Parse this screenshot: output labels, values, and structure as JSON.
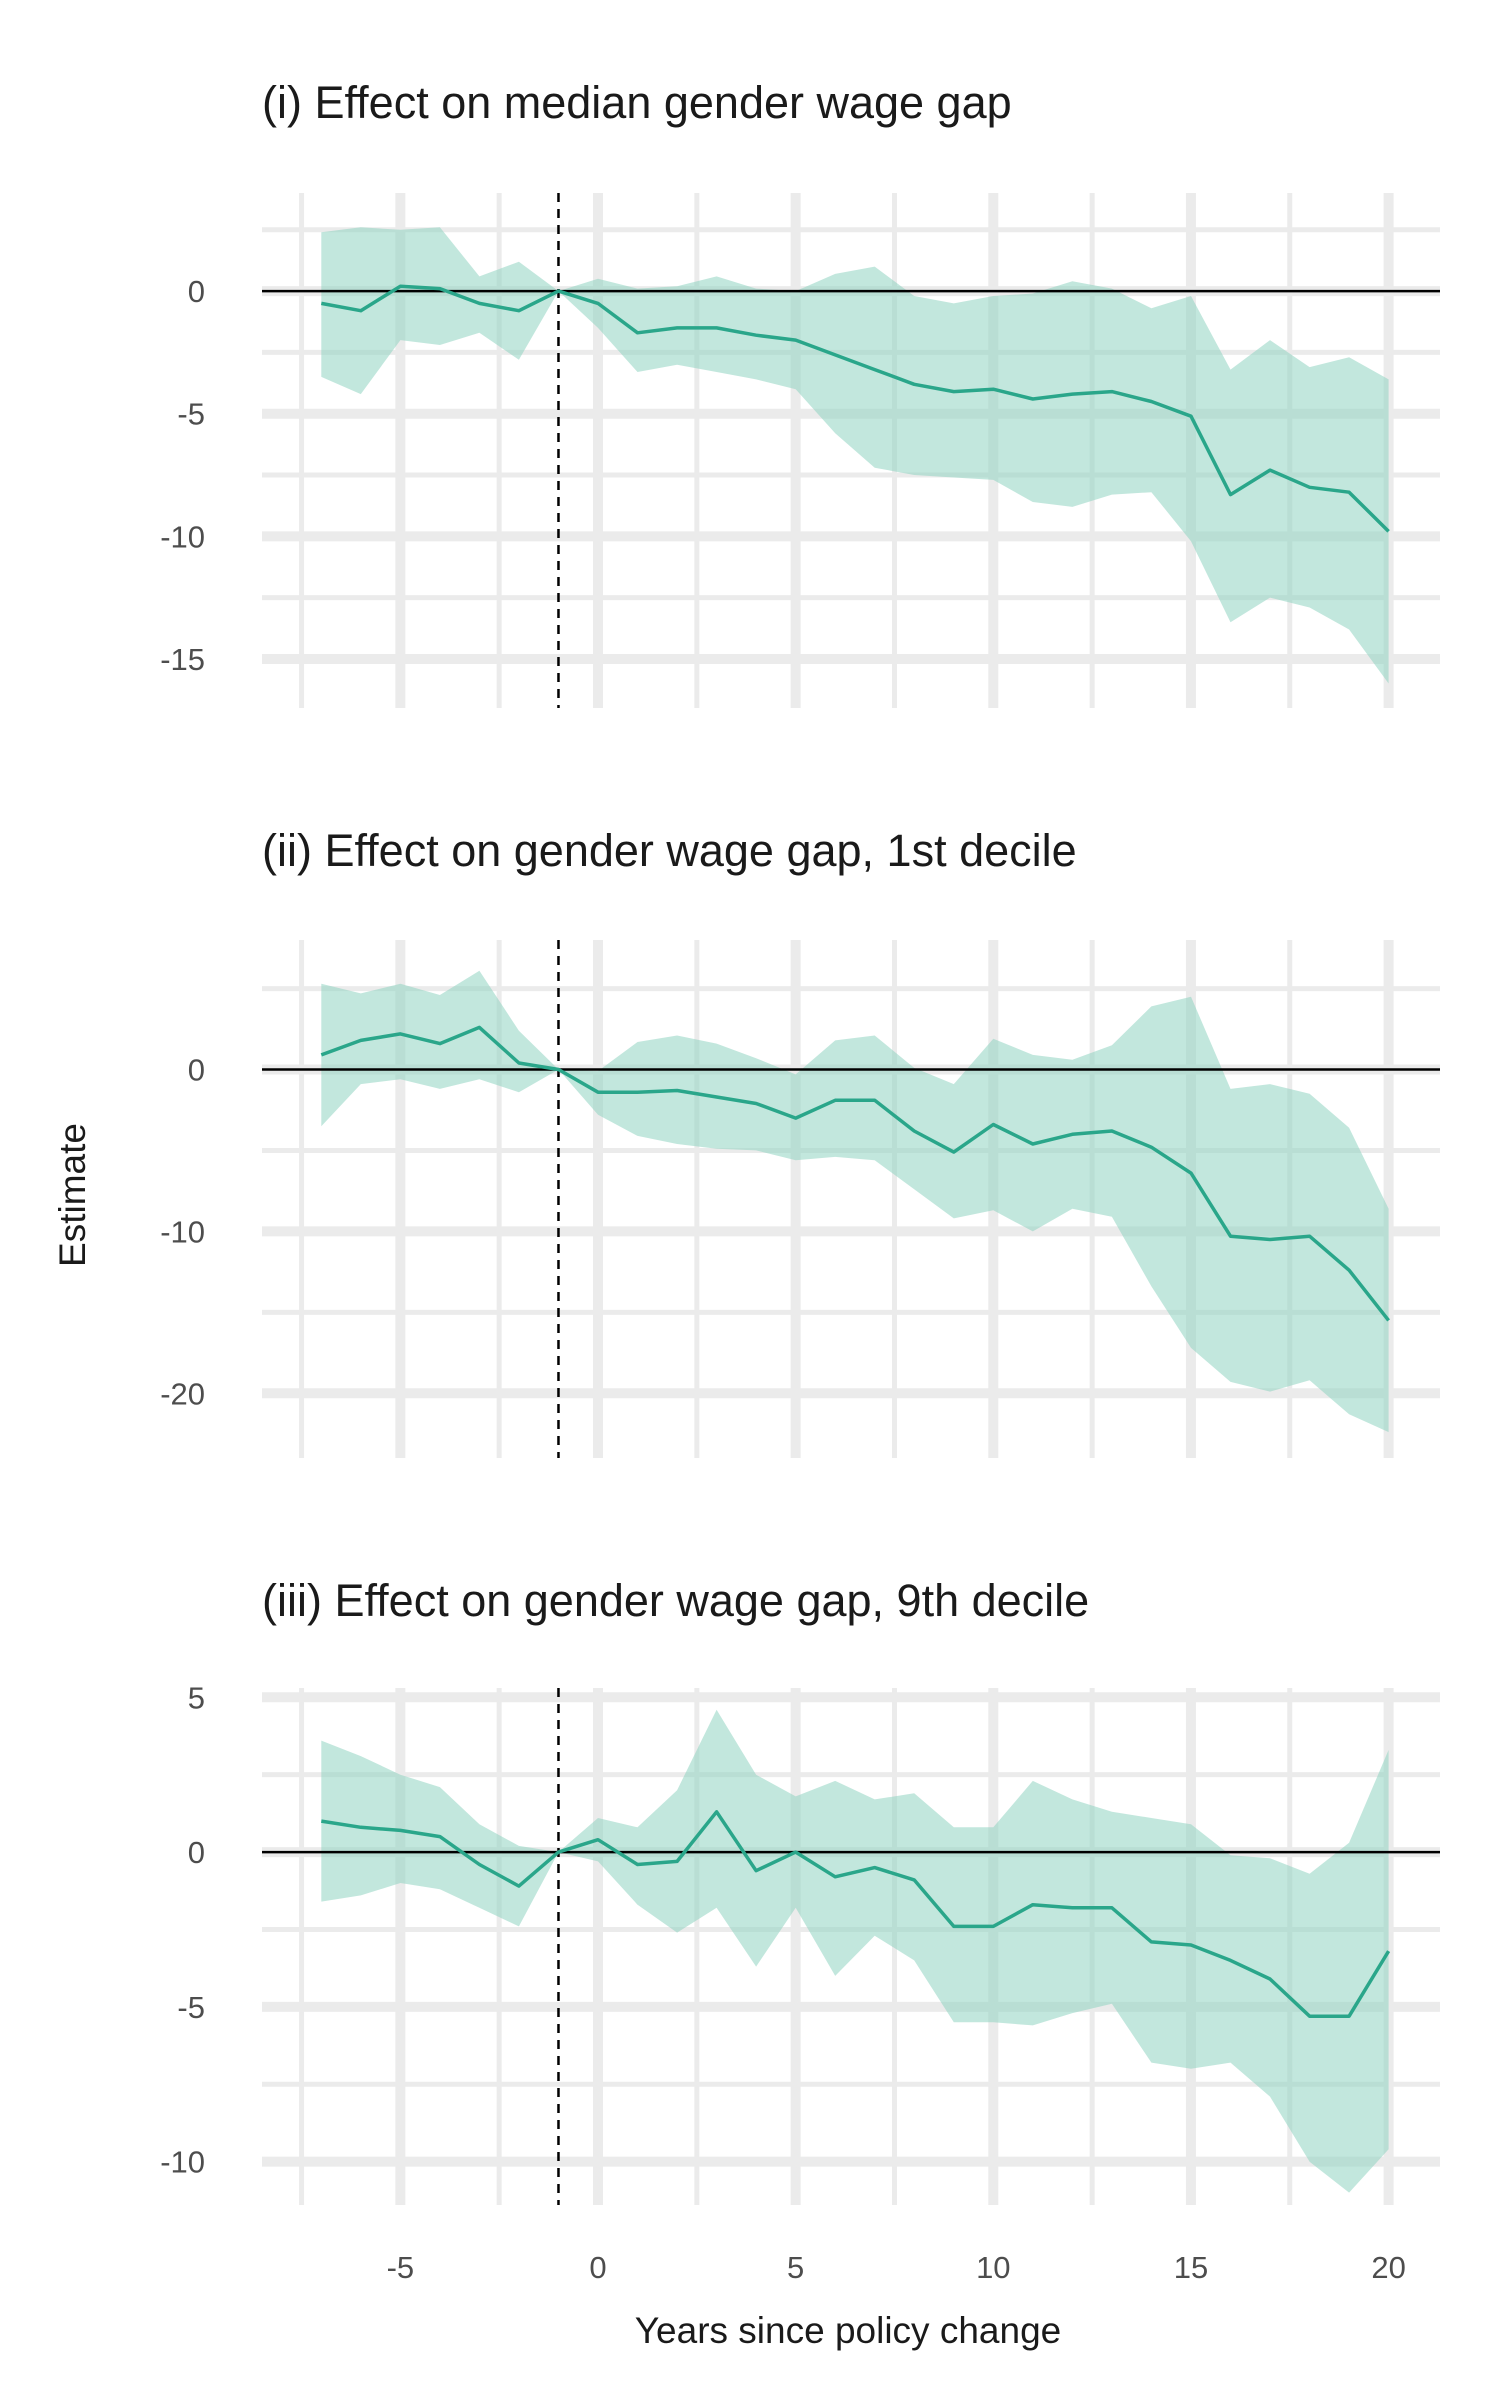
{
  "figure": {
    "ylabel": "Estimate",
    "xlabel": "Years since policy change",
    "x_ticks": [
      -5,
      0,
      5,
      10,
      15,
      20
    ],
    "xlim": [
      -8.5,
      21.3
    ],
    "reference_x": -1,
    "colors": {
      "line": "#2aa68a",
      "ribbon": "#8fd3c1",
      "grid": "#ebebeb",
      "zero_line": "#000000",
      "text": "#1a1a1a",
      "tick_text": "#4d4d4d"
    }
  },
  "chart_data": [
    {
      "type": "line",
      "title": "(i) Effect on median gender wage gap",
      "ylim": [
        -17,
        4
      ],
      "y_ticks": [
        0,
        -5,
        -10,
        -15
      ],
      "x": [
        -7,
        -6,
        -5,
        -4,
        -3,
        -2,
        -1,
        0,
        1,
        2,
        3,
        4,
        5,
        6,
        7,
        8,
        9,
        10,
        11,
        12,
        13,
        14,
        15,
        16,
        17,
        18,
        19,
        20
      ],
      "series": [
        {
          "estimate": [
            -0.5,
            -0.8,
            0.2,
            0.1,
            -0.5,
            -0.8,
            0.0,
            -0.5,
            -1.7,
            -1.5,
            -1.5,
            -1.8,
            -2.0,
            -2.6,
            -3.2,
            -3.8,
            -4.1,
            -4.0,
            -4.4,
            -4.2,
            -4.1,
            -4.5,
            -5.1,
            -8.3,
            -7.3,
            -8.0,
            -8.2,
            -9.8
          ],
          "ci_low": [
            -3.5,
            -4.2,
            -2.0,
            -2.2,
            -1.7,
            -2.8,
            0.0,
            -1.5,
            -3.3,
            -3.0,
            -3.3,
            -3.6,
            -4.0,
            -5.8,
            -7.2,
            -7.5,
            -7.6,
            -7.7,
            -8.6,
            -8.8,
            -8.3,
            -8.2,
            -10.2,
            -13.5,
            -12.5,
            -12.9,
            -13.8,
            -16.0
          ],
          "ci_high": [
            2.4,
            2.6,
            2.5,
            2.6,
            0.6,
            1.2,
            0.0,
            0.5,
            0.1,
            0.2,
            0.6,
            0.1,
            0.0,
            0.7,
            1.0,
            -0.2,
            -0.5,
            -0.2,
            -0.1,
            0.4,
            0.1,
            -0.7,
            -0.2,
            -3.2,
            -2.0,
            -3.1,
            -2.7,
            -3.6
          ]
        }
      ]
    },
    {
      "type": "line",
      "title": "(ii) Effect on gender wage gap, 1st decile",
      "ylim": [
        -24,
        8
      ],
      "y_ticks": [
        0,
        -10,
        -20
      ],
      "x": [
        -7,
        -6,
        -5,
        -4,
        -3,
        -2,
        -1,
        0,
        1,
        2,
        3,
        4,
        5,
        6,
        7,
        8,
        9,
        10,
        11,
        12,
        13,
        14,
        15,
        16,
        17,
        18,
        19,
        20
      ],
      "series": [
        {
          "estimate": [
            0.9,
            1.8,
            2.2,
            1.6,
            2.6,
            0.4,
            0.0,
            -1.4,
            -1.4,
            -1.3,
            -1.7,
            -2.1,
            -3.0,
            -1.9,
            -1.9,
            -3.8,
            -5.1,
            -3.4,
            -4.6,
            -4.0,
            -3.8,
            -4.8,
            -6.4,
            -10.3,
            -10.5,
            -10.3,
            -12.4,
            -15.5
          ],
          "ci_low": [
            -3.5,
            -0.9,
            -0.6,
            -1.2,
            -0.6,
            -1.4,
            0.0,
            -2.8,
            -4.1,
            -4.6,
            -4.9,
            -5.0,
            -5.6,
            -5.4,
            -5.6,
            -7.4,
            -9.2,
            -8.7,
            -10.0,
            -8.6,
            -9.1,
            -13.4,
            -17.2,
            -19.3,
            -19.9,
            -19.2,
            -21.3,
            -22.4
          ],
          "ci_high": [
            5.3,
            4.7,
            5.3,
            4.6,
            6.1,
            2.4,
            0.0,
            -0.1,
            1.7,
            2.1,
            1.6,
            0.7,
            -0.3,
            1.8,
            2.1,
            0.1,
            -0.9,
            1.9,
            0.9,
            0.6,
            1.5,
            3.9,
            4.5,
            -1.2,
            -0.9,
            -1.5,
            -3.6,
            -8.6
          ]
        }
      ]
    },
    {
      "type": "line",
      "title": "(iii) Effect on gender wage gap, 9th decile",
      "ylim": [
        -11.4,
        5.3
      ],
      "y_ticks": [
        5,
        0,
        -5,
        -10
      ],
      "x": [
        -7,
        -6,
        -5,
        -4,
        -3,
        -2,
        -1,
        0,
        1,
        2,
        3,
        4,
        5,
        6,
        7,
        8,
        9,
        10,
        11,
        12,
        13,
        14,
        15,
        16,
        17,
        18,
        19,
        20
      ],
      "series": [
        {
          "estimate": [
            1.0,
            0.8,
            0.7,
            0.5,
            -0.4,
            -1.1,
            0.0,
            0.4,
            -0.4,
            -0.3,
            1.3,
            -0.6,
            0.0,
            -0.8,
            -0.5,
            -0.9,
            -2.4,
            -2.4,
            -1.7,
            -1.8,
            -1.8,
            -2.9,
            -3.0,
            -3.5,
            -4.1,
            -5.3,
            -5.3,
            -3.2
          ],
          "ci_low": [
            -1.6,
            -1.4,
            -1.0,
            -1.2,
            -1.8,
            -2.4,
            0.0,
            -0.3,
            -1.7,
            -2.6,
            -1.8,
            -3.7,
            -1.8,
            -4.0,
            -2.7,
            -3.5,
            -5.5,
            -5.5,
            -5.6,
            -5.2,
            -4.9,
            -6.8,
            -7.0,
            -6.8,
            -7.9,
            -10.0,
            -11.0,
            -9.6
          ],
          "ci_high": [
            3.6,
            3.1,
            2.5,
            2.1,
            0.9,
            0.2,
            0.0,
            1.1,
            0.8,
            2.0,
            4.6,
            2.5,
            1.8,
            2.3,
            1.7,
            1.9,
            0.8,
            0.8,
            2.3,
            1.7,
            1.3,
            1.1,
            0.9,
            -0.1,
            -0.2,
            -0.7,
            0.3,
            3.3
          ]
        }
      ]
    }
  ]
}
